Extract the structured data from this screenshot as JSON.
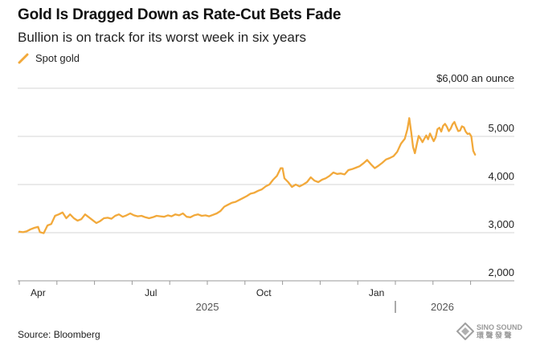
{
  "chart_data": {
    "type": "line",
    "title": "Gold Is Dragged Down as Rate-Cut Bets Fade",
    "subtitle": "Bullion is on track for its worst week in six years",
    "ylabel": "$6,000 an ounce",
    "ylim": [
      2000,
      6000
    ],
    "yticks": [
      {
        "value": 5000,
        "label": "5,000"
      },
      {
        "value": 4000,
        "label": "4,000"
      },
      {
        "value": 3000,
        "label": "3,000"
      },
      {
        "value": 2000,
        "label": "2,000"
      }
    ],
    "xticks": [
      {
        "t": 0.5,
        "label": "Apr"
      },
      {
        "t": 3.5,
        "label": "Jul"
      },
      {
        "t": 6.5,
        "label": "Oct"
      },
      {
        "t": 9.5,
        "label": "Jan"
      }
    ],
    "year_labels": [
      {
        "t": 5.0,
        "label": "2025"
      },
      {
        "t": 11.25,
        "label": "2026"
      }
    ],
    "year_divider_t": 10.0,
    "xlim": [
      0,
      12.6
    ],
    "series": [
      {
        "name": "Spot gold",
        "color": "#f2a93b",
        "points": [
          [
            0.0,
            3020
          ],
          [
            0.1,
            3010
          ],
          [
            0.2,
            3030
          ],
          [
            0.3,
            3070
          ],
          [
            0.4,
            3100
          ],
          [
            0.5,
            3120
          ],
          [
            0.55,
            3010
          ],
          [
            0.65,
            2990
          ],
          [
            0.75,
            3150
          ],
          [
            0.85,
            3180
          ],
          [
            0.95,
            3350
          ],
          [
            1.05,
            3380
          ],
          [
            1.15,
            3420
          ],
          [
            1.25,
            3300
          ],
          [
            1.35,
            3380
          ],
          [
            1.45,
            3300
          ],
          [
            1.55,
            3250
          ],
          [
            1.65,
            3280
          ],
          [
            1.75,
            3380
          ],
          [
            1.85,
            3320
          ],
          [
            1.95,
            3260
          ],
          [
            2.05,
            3200
          ],
          [
            2.15,
            3240
          ],
          [
            2.25,
            3300
          ],
          [
            2.35,
            3310
          ],
          [
            2.45,
            3290
          ],
          [
            2.55,
            3350
          ],
          [
            2.65,
            3380
          ],
          [
            2.75,
            3330
          ],
          [
            2.85,
            3360
          ],
          [
            2.95,
            3400
          ],
          [
            3.05,
            3360
          ],
          [
            3.15,
            3340
          ],
          [
            3.25,
            3350
          ],
          [
            3.35,
            3320
          ],
          [
            3.45,
            3300
          ],
          [
            3.55,
            3320
          ],
          [
            3.65,
            3350
          ],
          [
            3.75,
            3340
          ],
          [
            3.85,
            3330
          ],
          [
            3.95,
            3360
          ],
          [
            4.05,
            3340
          ],
          [
            4.15,
            3380
          ],
          [
            4.25,
            3360
          ],
          [
            4.35,
            3400
          ],
          [
            4.45,
            3330
          ],
          [
            4.55,
            3320
          ],
          [
            4.65,
            3360
          ],
          [
            4.75,
            3380
          ],
          [
            4.85,
            3350
          ],
          [
            4.95,
            3360
          ],
          [
            5.05,
            3340
          ],
          [
            5.15,
            3370
          ],
          [
            5.25,
            3400
          ],
          [
            5.35,
            3450
          ],
          [
            5.45,
            3540
          ],
          [
            5.55,
            3580
          ],
          [
            5.65,
            3620
          ],
          [
            5.75,
            3640
          ],
          [
            5.85,
            3680
          ],
          [
            5.95,
            3720
          ],
          [
            6.05,
            3760
          ],
          [
            6.15,
            3810
          ],
          [
            6.25,
            3830
          ],
          [
            6.35,
            3870
          ],
          [
            6.45,
            3900
          ],
          [
            6.55,
            3960
          ],
          [
            6.65,
            4000
          ],
          [
            6.75,
            4100
          ],
          [
            6.85,
            4180
          ],
          [
            6.95,
            4340
          ],
          [
            7.0,
            4340
          ],
          [
            7.05,
            4130
          ],
          [
            7.15,
            4050
          ],
          [
            7.25,
            3950
          ],
          [
            7.35,
            4000
          ],
          [
            7.45,
            3960
          ],
          [
            7.55,
            4000
          ],
          [
            7.65,
            4050
          ],
          [
            7.75,
            4150
          ],
          [
            7.85,
            4080
          ],
          [
            7.95,
            4050
          ],
          [
            8.05,
            4100
          ],
          [
            8.15,
            4130
          ],
          [
            8.25,
            4180
          ],
          [
            8.35,
            4250
          ],
          [
            8.45,
            4220
          ],
          [
            8.55,
            4230
          ],
          [
            8.65,
            4210
          ],
          [
            8.75,
            4300
          ],
          [
            8.85,
            4320
          ],
          [
            8.95,
            4350
          ],
          [
            9.05,
            4380
          ],
          [
            9.15,
            4440
          ],
          [
            9.25,
            4510
          ],
          [
            9.35,
            4420
          ],
          [
            9.45,
            4340
          ],
          [
            9.55,
            4390
          ],
          [
            9.65,
            4450
          ],
          [
            9.75,
            4520
          ],
          [
            9.85,
            4550
          ],
          [
            9.95,
            4590
          ],
          [
            10.05,
            4680
          ],
          [
            10.15,
            4850
          ],
          [
            10.25,
            4950
          ],
          [
            10.32,
            5150
          ],
          [
            10.37,
            5380
          ],
          [
            10.42,
            5090
          ],
          [
            10.47,
            4780
          ],
          [
            10.52,
            4650
          ],
          [
            10.57,
            4840
          ],
          [
            10.62,
            5010
          ],
          [
            10.67,
            4950
          ],
          [
            10.72,
            4880
          ],
          [
            10.77,
            4950
          ],
          [
            10.82,
            5020
          ],
          [
            10.87,
            4940
          ],
          [
            10.92,
            5060
          ],
          [
            10.97,
            4980
          ],
          [
            11.02,
            4900
          ],
          [
            11.07,
            4980
          ],
          [
            11.12,
            5150
          ],
          [
            11.17,
            5180
          ],
          [
            11.22,
            5100
          ],
          [
            11.27,
            5220
          ],
          [
            11.32,
            5260
          ],
          [
            11.37,
            5200
          ],
          [
            11.42,
            5110
          ],
          [
            11.47,
            5160
          ],
          [
            11.52,
            5250
          ],
          [
            11.57,
            5300
          ],
          [
            11.62,
            5200
          ],
          [
            11.67,
            5110
          ],
          [
            11.72,
            5120
          ],
          [
            11.77,
            5210
          ],
          [
            11.82,
            5190
          ],
          [
            11.87,
            5100
          ],
          [
            11.92,
            5050
          ],
          [
            11.97,
            5060
          ],
          [
            12.02,
            5000
          ],
          [
            12.07,
            4700
          ],
          [
            12.12,
            4620
          ]
        ]
      }
    ]
  },
  "source": "Source: Bloomberg",
  "watermark": {
    "line1": "SINO SOUND",
    "line2": "環 聲 發 聲"
  }
}
